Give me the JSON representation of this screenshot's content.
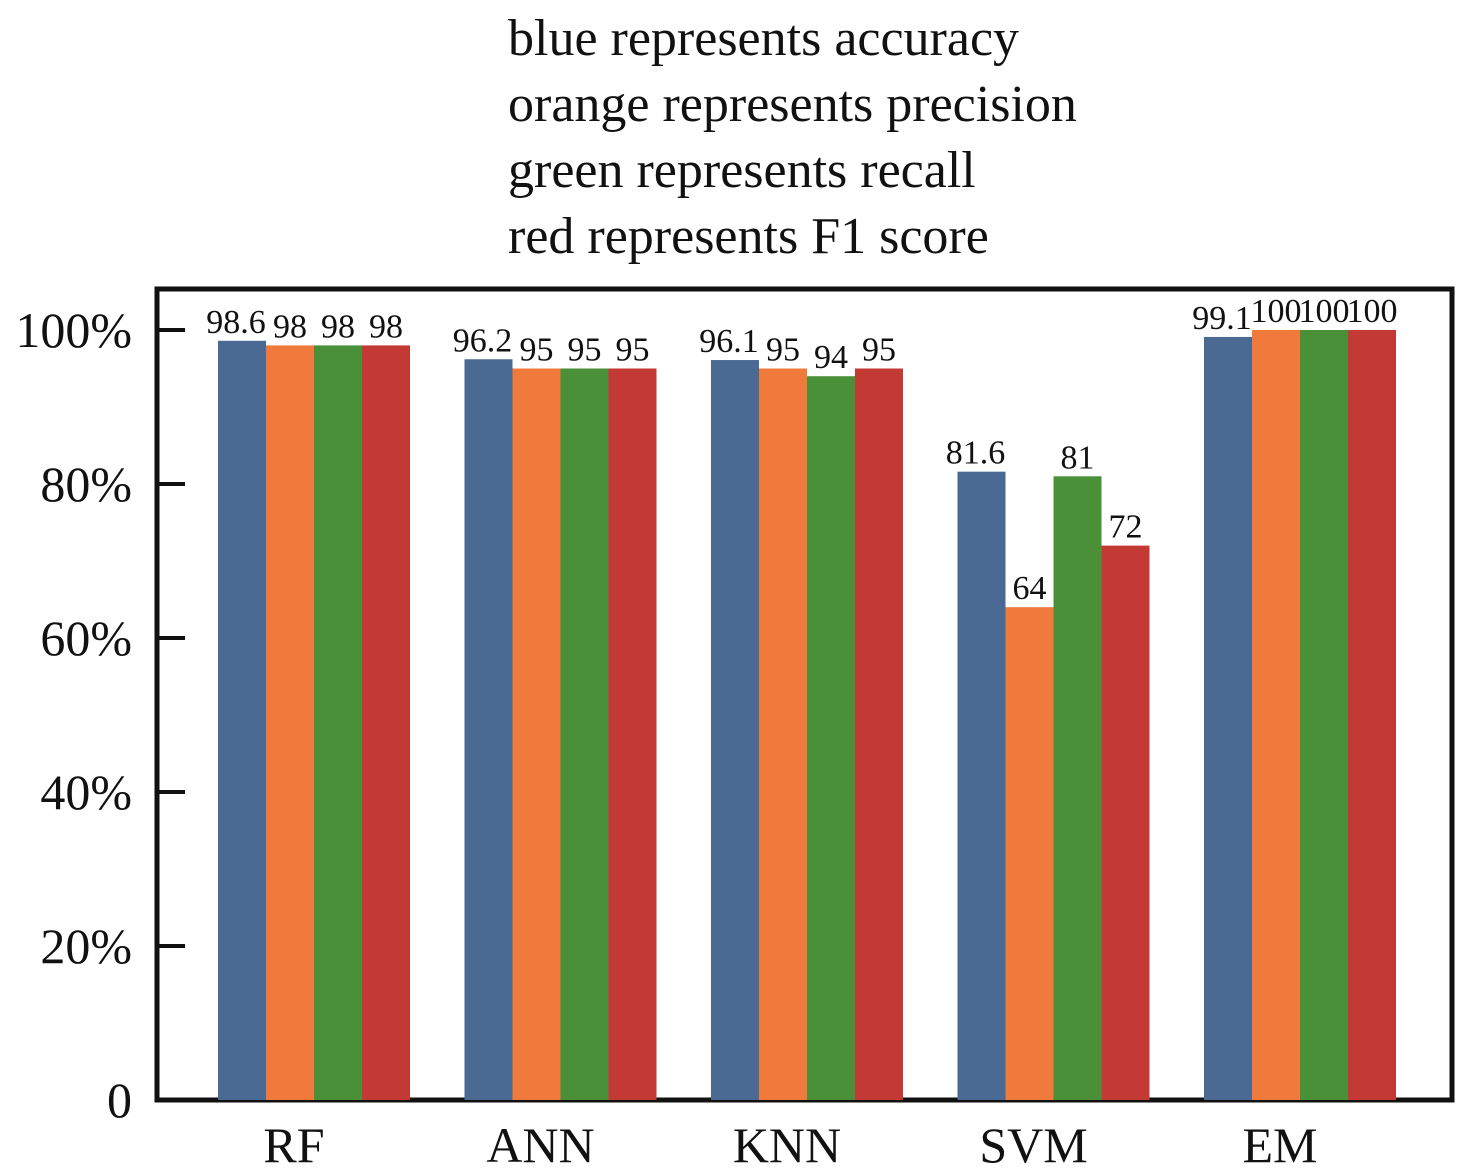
{
  "chart_data": {
    "type": "bar",
    "title_lines": [
      "blue represents accuracy",
      "orange represents precision",
      "green represents recall",
      "red represents F1 score"
    ],
    "categories": [
      "RF",
      "ANN",
      "KNN",
      "SVM",
      "EM"
    ],
    "series": [
      {
        "key": "accuracy",
        "color": "#4a6a93",
        "values": [
          98.6,
          96.2,
          96.1,
          81.6,
          99.1
        ],
        "labels": [
          "98.6",
          "96.2",
          "96.1",
          "81.6",
          "99.1"
        ]
      },
      {
        "key": "precision",
        "color": "#ef7a3c",
        "values": [
          98,
          95,
          95,
          64,
          100
        ],
        "labels": [
          "98",
          "95",
          "95",
          "64",
          "100"
        ]
      },
      {
        "key": "recall",
        "color": "#4a9038",
        "values": [
          98,
          95,
          94,
          81,
          100
        ],
        "labels": [
          "98",
          "95",
          "94",
          "81",
          "100"
        ]
      },
      {
        "key": "f1",
        "color": "#c33a35",
        "values": [
          98,
          95,
          95,
          72,
          100
        ],
        "labels": [
          "98",
          "95",
          "95",
          "72",
          "100"
        ]
      }
    ],
    "y_ticks": [
      {
        "value": 0,
        "label": "0"
      },
      {
        "value": 20,
        "label": "20%"
      },
      {
        "value": 40,
        "label": "40%"
      },
      {
        "value": 60,
        "label": "60%"
      },
      {
        "value": 80,
        "label": "80%"
      },
      {
        "value": 100,
        "label": "100%"
      }
    ],
    "ylim": [
      0,
      100
    ],
    "grid": false,
    "legend": "text lines above the plot"
  }
}
